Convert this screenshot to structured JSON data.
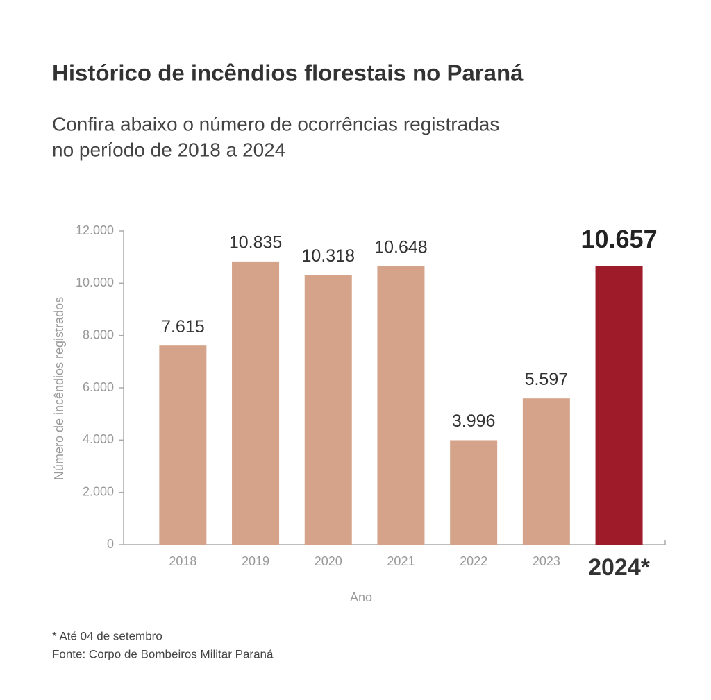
{
  "chart_data": {
    "type": "bar",
    "title": "Histórico de incêndios florestais no Paraná",
    "subtitle": [
      "Confira abaixo o número de ocorrências registradas",
      "no período de 2018 a 2024"
    ],
    "x_label": "Ano",
    "y_label": "Número de incêndios registrados",
    "categories": [
      "2018",
      "2019",
      "2020",
      "2021",
      "2022",
      "2023",
      "2024*"
    ],
    "values": [
      7615,
      10835,
      10318,
      10648,
      3996,
      5597,
      10657
    ],
    "value_labels": [
      "7.615",
      "10.835",
      "10.318",
      "10.648",
      "3.996",
      "5.597",
      "10.657"
    ],
    "colors": [
      "#d4a389",
      "#d4a389",
      "#d4a389",
      "#d4a389",
      "#d4a389",
      "#d4a389",
      "#9e1b2a"
    ],
    "ylim": [
      0,
      12000
    ],
    "yticks": [
      0,
      {
        "value": 2000,
        "label": "2.000"
      },
      {
        "value": 4000,
        "label": "4.000"
      },
      {
        "value": 6000,
        "label": "6.000"
      },
      {
        "value": 8000,
        "label": "8.000"
      },
      {
        "value": 10000,
        "label": "10.000"
      },
      {
        "value": 12000,
        "label": "12.000"
      }
    ],
    "notes": [
      "* Até 04 de setembro",
      "Fonte: Corpo de Bombeiros Militar Paraná"
    ]
  }
}
